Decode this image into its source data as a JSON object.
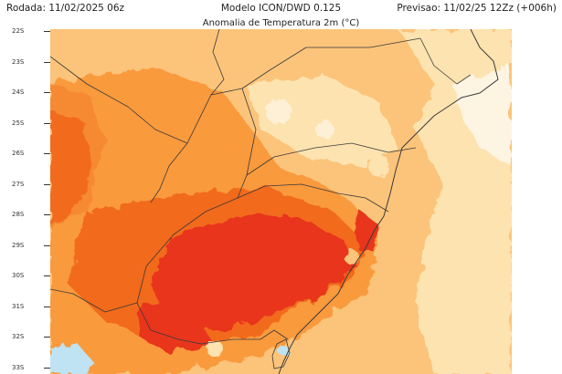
{
  "header": {
    "run_label": "Rodada: 11/02/2025 06z",
    "model_label": "Modelo ICON/DWD 0.125",
    "forecast_label": "Previsao: 11/02/25 12Zz (+006h)",
    "map_title": "Anomalia de Temperatura 2m (°C)"
  },
  "latitude_labels": [
    "22S",
    "23S",
    "24S",
    "25S",
    "26S",
    "27S",
    "28S",
    "29S",
    "30S",
    "31S",
    "32S",
    "33S"
  ],
  "colors": {
    "light_anomaly": "#fde3b0",
    "mild_anomaly": "#fbc47a",
    "moderate_anomaly": "#f99a3e",
    "strong_anomaly": "#f26b1f",
    "extreme_anomaly": "#e8351c",
    "cold_anomaly": "#bfe3f2",
    "borders": "#3a3a3a"
  }
}
